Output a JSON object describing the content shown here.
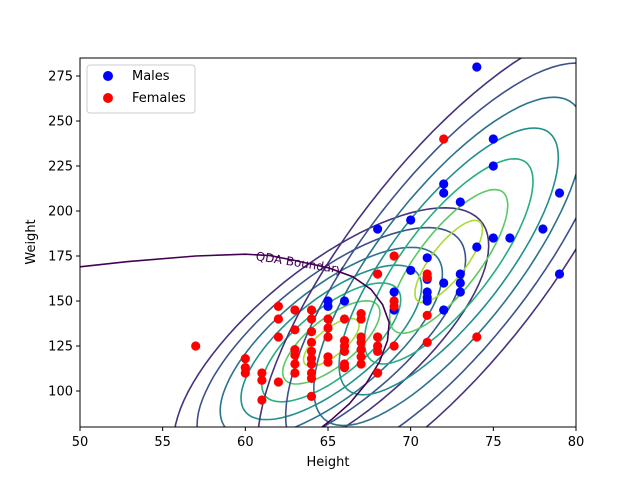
{
  "chart_data": {
    "type": "scatter",
    "title": "",
    "xlabel": "Height",
    "ylabel": "Weight",
    "xlim": [
      50,
      80
    ],
    "ylim": [
      80,
      285
    ],
    "xticks": [
      50,
      55,
      60,
      65,
      70,
      75,
      80
    ],
    "yticks": [
      100,
      125,
      150,
      175,
      200,
      225,
      250,
      275
    ],
    "grid": false,
    "legend_position": "upper-left",
    "series": [
      {
        "name": "Males",
        "color": "#0000ff",
        "points": [
          [
            74,
            280
          ],
          [
            75,
            240
          ],
          [
            75,
            225
          ],
          [
            72,
            215
          ],
          [
            72,
            210
          ],
          [
            73,
            205
          ],
          [
            79,
            210
          ],
          [
            70,
            195
          ],
          [
            68,
            190
          ],
          [
            78,
            190
          ],
          [
            75,
            185
          ],
          [
            76,
            185
          ],
          [
            74,
            180
          ],
          [
            71,
            174
          ],
          [
            70,
            167
          ],
          [
            73,
            165
          ],
          [
            79,
            165
          ],
          [
            71,
            163
          ],
          [
            71,
            162
          ],
          [
            72,
            160
          ],
          [
            73,
            160
          ],
          [
            71,
            155
          ],
          [
            73,
            155
          ],
          [
            69,
            155
          ],
          [
            71,
            152
          ],
          [
            71,
            150
          ],
          [
            65,
            150
          ],
          [
            66,
            150
          ],
          [
            65,
            147
          ],
          [
            72,
            145
          ],
          [
            69,
            145
          ]
        ]
      },
      {
        "name": "Females",
        "color": "#ff0000",
        "points": [
          [
            72,
            240
          ],
          [
            69,
            175
          ],
          [
            68,
            165
          ],
          [
            71,
            165
          ],
          [
            71,
            163
          ],
          [
            69,
            150
          ],
          [
            62,
            147
          ],
          [
            64,
            145
          ],
          [
            63,
            145
          ],
          [
            62,
            140
          ],
          [
            64,
            140
          ],
          [
            65,
            140
          ],
          [
            66,
            140
          ],
          [
            67,
            143
          ],
          [
            67,
            140
          ],
          [
            65,
            135
          ],
          [
            63,
            134
          ],
          [
            64,
            133
          ],
          [
            69,
            147
          ],
          [
            57,
            125
          ],
          [
            60,
            118
          ],
          [
            60,
            113
          ],
          [
            60,
            110
          ],
          [
            61,
            110
          ],
          [
            61,
            106
          ],
          [
            62,
            105
          ],
          [
            61,
            95
          ],
          [
            64,
            97
          ],
          [
            62,
            130
          ],
          [
            63,
            123
          ],
          [
            63,
            120
          ],
          [
            63,
            115
          ],
          [
            63,
            110
          ],
          [
            64,
            127
          ],
          [
            64,
            122
          ],
          [
            64,
            118
          ],
          [
            64,
            115
          ],
          [
            64,
            110
          ],
          [
            64,
            107
          ],
          [
            65,
            130
          ],
          [
            65,
            119
          ],
          [
            65,
            116
          ],
          [
            66,
            128
          ],
          [
            66,
            125
          ],
          [
            66,
            122
          ],
          [
            66,
            115
          ],
          [
            66,
            113
          ],
          [
            67,
            130
          ],
          [
            67,
            127
          ],
          [
            67,
            123
          ],
          [
            67,
            119
          ],
          [
            67,
            115
          ],
          [
            68,
            130
          ],
          [
            68,
            125
          ],
          [
            68,
            122
          ],
          [
            68,
            110
          ],
          [
            69,
            125
          ],
          [
            71,
            127
          ],
          [
            74,
            130
          ],
          [
            71,
            142
          ]
        ]
      }
    ],
    "contours": {
      "colormap": "viridis",
      "groups": [
        {
          "name": "Females",
          "center": [
            65.2,
            127
          ],
          "sx": 2.8,
          "sy": 22,
          "rho": 0.72
        },
        {
          "name": "Males",
          "center": [
            72.3,
            172
          ],
          "sx": 3.4,
          "sy": 38,
          "rho": 0.78
        }
      ]
    },
    "boundary": {
      "label": "QDA Boundary",
      "color": "#440154"
    }
  }
}
